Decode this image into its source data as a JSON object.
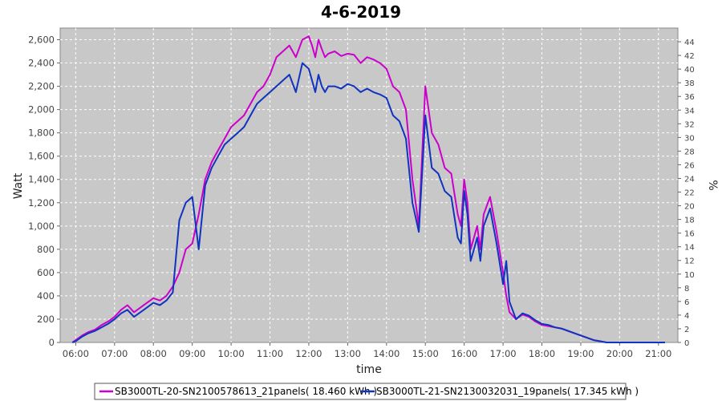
{
  "chart_data": {
    "type": "line",
    "title": "4-6-2019",
    "xlabel": "time",
    "ylabel": "Watt",
    "y2label": "%",
    "x_ticks": [
      "06:00",
      "07:00",
      "08:00",
      "09:00",
      "10:00",
      "11:00",
      "12:00",
      "13:00",
      "14:00",
      "15:00",
      "16:00",
      "17:00",
      "18:00",
      "19:00",
      "20:00",
      "21:00"
    ],
    "x_range_hours": [
      5.6,
      21.5
    ],
    "ylim": [
      0,
      2700
    ],
    "y_ticks": [
      0,
      200,
      400,
      600,
      800,
      1000,
      1200,
      1400,
      1600,
      1800,
      2000,
      2200,
      2400,
      2600
    ],
    "y_tick_labels": [
      "0",
      "200",
      "400",
      "600",
      "800",
      "1,000",
      "1,200",
      "1,400",
      "1,600",
      "1,800",
      "2,000",
      "2,200",
      "2,400",
      "2,600"
    ],
    "y2lim": [
      0,
      46
    ],
    "y2_ticks": [
      "0",
      "2",
      "4",
      "6",
      "8",
      "10",
      "12",
      "14",
      "16",
      "18",
      "20",
      "22",
      "24",
      "26",
      "28",
      "30",
      "32",
      "34",
      "36",
      "38",
      "40",
      "42",
      "44"
    ],
    "grid": true,
    "legend_position": "bottom",
    "series": [
      {
        "name": "SB3000TL-20-SN2100578613_21panels( 18.460 kWh )",
        "color": "#cc00cc",
        "x": [
          "05:55",
          "06:00",
          "06:10",
          "06:20",
          "06:30",
          "06:40",
          "06:50",
          "07:00",
          "07:10",
          "07:20",
          "07:30",
          "07:40",
          "07:50",
          "08:00",
          "08:10",
          "08:20",
          "08:30",
          "08:40",
          "08:50",
          "09:00",
          "09:10",
          "09:20",
          "09:30",
          "09:40",
          "09:50",
          "10:00",
          "10:10",
          "10:20",
          "10:30",
          "10:40",
          "10:50",
          "11:00",
          "11:10",
          "11:20",
          "11:30",
          "11:40",
          "11:50",
          "12:00",
          "12:05",
          "12:10",
          "12:15",
          "12:20",
          "12:25",
          "12:30",
          "12:40",
          "12:50",
          "13:00",
          "13:10",
          "13:20",
          "13:30",
          "13:40",
          "13:50",
          "14:00",
          "14:10",
          "14:20",
          "14:30",
          "14:40",
          "14:50",
          "15:00",
          "15:10",
          "15:20",
          "15:30",
          "15:40",
          "15:50",
          "15:55",
          "16:00",
          "16:05",
          "16:10",
          "16:15",
          "16:20",
          "16:25",
          "16:30",
          "16:40",
          "16:50",
          "17:00",
          "17:05",
          "17:10",
          "17:20",
          "17:30",
          "17:40",
          "17:50",
          "18:00",
          "18:10",
          "18:20",
          "18:30",
          "18:40",
          "18:50",
          "19:00",
          "19:10",
          "19:20",
          "19:30",
          "19:40",
          "19:50",
          "20:00",
          "20:10",
          "20:20",
          "20:30",
          "20:40",
          "20:50",
          "21:00",
          "21:10"
        ],
        "values": [
          0,
          20,
          60,
          90,
          110,
          150,
          180,
          220,
          280,
          320,
          260,
          300,
          340,
          380,
          360,
          400,
          480,
          600,
          800,
          850,
          1100,
          1400,
          1550,
          1650,
          1750,
          1850,
          1900,
          1950,
          2050,
          2150,
          2200,
          2300,
          2450,
          2500,
          2550,
          2450,
          2600,
          2630,
          2550,
          2450,
          2600,
          2520,
          2450,
          2480,
          2500,
          2460,
          2480,
          2470,
          2400,
          2450,
          2430,
          2400,
          2350,
          2200,
          2150,
          2000,
          1400,
          1000,
          2200,
          1800,
          1700,
          1500,
          1450,
          1100,
          1000,
          1400,
          1200,
          800,
          900,
          1000,
          800,
          1100,
          1250,
          950,
          600,
          400,
          260,
          200,
          240,
          220,
          180,
          150,
          140,
          130,
          120,
          100,
          80,
          60,
          40,
          20,
          10,
          0,
          0,
          0,
          0,
          0,
          0,
          0,
          0,
          0,
          0
        ],
        "note_source": "visual estimate"
      },
      {
        "name": "SB3000TL-21-SN2130032031_19panels( 17.345 kWh )",
        "color": "#1033c0",
        "x": [
          "05:55",
          "06:00",
          "06:10",
          "06:20",
          "06:30",
          "06:40",
          "06:50",
          "07:00",
          "07:10",
          "07:20",
          "07:30",
          "07:40",
          "07:50",
          "08:00",
          "08:10",
          "08:20",
          "08:30",
          "08:40",
          "08:50",
          "09:00",
          "09:10",
          "09:20",
          "09:30",
          "09:40",
          "09:50",
          "10:00",
          "10:10",
          "10:20",
          "10:30",
          "10:40",
          "10:50",
          "11:00",
          "11:10",
          "11:20",
          "11:30",
          "11:40",
          "11:50",
          "12:00",
          "12:05",
          "12:10",
          "12:15",
          "12:20",
          "12:25",
          "12:30",
          "12:40",
          "12:50",
          "13:00",
          "13:10",
          "13:20",
          "13:30",
          "13:40",
          "13:50",
          "14:00",
          "14:10",
          "14:20",
          "14:30",
          "14:40",
          "14:50",
          "15:00",
          "15:10",
          "15:20",
          "15:30",
          "15:40",
          "15:50",
          "15:55",
          "16:00",
          "16:05",
          "16:10",
          "16:15",
          "16:20",
          "16:25",
          "16:30",
          "16:40",
          "16:50",
          "17:00",
          "17:05",
          "17:10",
          "17:20",
          "17:30",
          "17:40",
          "17:50",
          "18:00",
          "18:10",
          "18:20",
          "18:30",
          "18:40",
          "18:50",
          "19:00",
          "19:10",
          "19:20",
          "19:30",
          "19:40",
          "19:50",
          "20:00",
          "20:10",
          "20:20",
          "20:30",
          "20:40",
          "20:50",
          "21:00",
          "21:10"
        ],
        "values": [
          0,
          10,
          50,
          80,
          100,
          130,
          160,
          200,
          250,
          280,
          220,
          260,
          300,
          340,
          320,
          360,
          430,
          1050,
          1200,
          1250,
          800,
          1350,
          1500,
          1600,
          1700,
          1750,
          1800,
          1850,
          1950,
          2050,
          2100,
          2150,
          2200,
          2250,
          2300,
          2150,
          2400,
          2350,
          2250,
          2150,
          2300,
          2200,
          2150,
          2200,
          2200,
          2180,
          2220,
          2200,
          2150,
          2180,
          2150,
          2130,
          2100,
          1950,
          1900,
          1750,
          1200,
          950,
          1950,
          1500,
          1450,
          1300,
          1250,
          900,
          850,
          1300,
          1100,
          700,
          800,
          900,
          700,
          1000,
          1150,
          850,
          500,
          700,
          350,
          200,
          250,
          230,
          190,
          160,
          150,
          130,
          120,
          100,
          80,
          60,
          40,
          20,
          10,
          0,
          0,
          0,
          0,
          0,
          0,
          0,
          0,
          0,
          0
        ],
        "note_source": "visual estimate"
      }
    ]
  }
}
